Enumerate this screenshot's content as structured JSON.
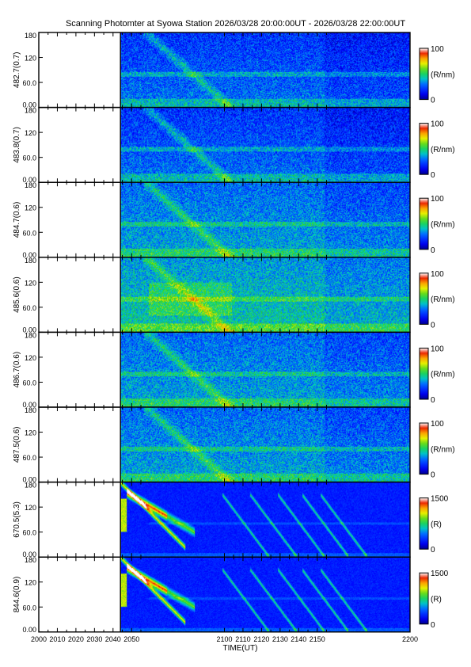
{
  "title": "Scanning Photomter at Syowa Station 2026/03/28 20:00:00UT - 2026/03/28 22:00:00UT",
  "chart_data": {
    "type": "heatmap",
    "xlabel": "TIME(UT)",
    "x_range": [
      2000,
      2200
    ],
    "x_ticks": [
      "2000",
      "2010",
      "2020",
      "2030",
      "2040",
      "2050",
      "2100",
      "2110",
      "2120",
      "2130",
      "2140",
      "2150",
      "2200"
    ],
    "data_start": 2044,
    "y_range": [
      0,
      180
    ],
    "y_ticks": [
      "0.00",
      "60.0",
      "120",
      "180"
    ],
    "panels": [
      {
        "label": "482.7(0.7)",
        "unit": "(R/nm)",
        "cmax": "100",
        "cmin": "0",
        "style": "quiet"
      },
      {
        "label": "483.8(0.7)",
        "unit": "(R/nm)",
        "cmax": "100",
        "cmin": "0",
        "style": "quiet"
      },
      {
        "label": "484.7(0.6)",
        "unit": "(R/nm)",
        "cmax": "100",
        "cmin": "0",
        "style": "mid"
      },
      {
        "label": "485.6(0.6)",
        "unit": "(R/nm)",
        "cmax": "100",
        "cmin": "0",
        "style": "hot"
      },
      {
        "label": "486.7(0.6)",
        "unit": "(R/nm)",
        "cmax": "100",
        "cmin": "0",
        "style": "mid"
      },
      {
        "label": "487.5(0.6)",
        "unit": "(R/nm)",
        "cmax": "100",
        "cmin": "0",
        "style": "mid"
      },
      {
        "label": "670.5(5.3)",
        "unit": "(R)",
        "cmax": "1500",
        "cmin": "0",
        "style": "aurora"
      },
      {
        "label": "844.6(0.9)",
        "unit": "(R)",
        "cmax": "1500",
        "cmin": "0",
        "style": "aurora"
      }
    ]
  }
}
